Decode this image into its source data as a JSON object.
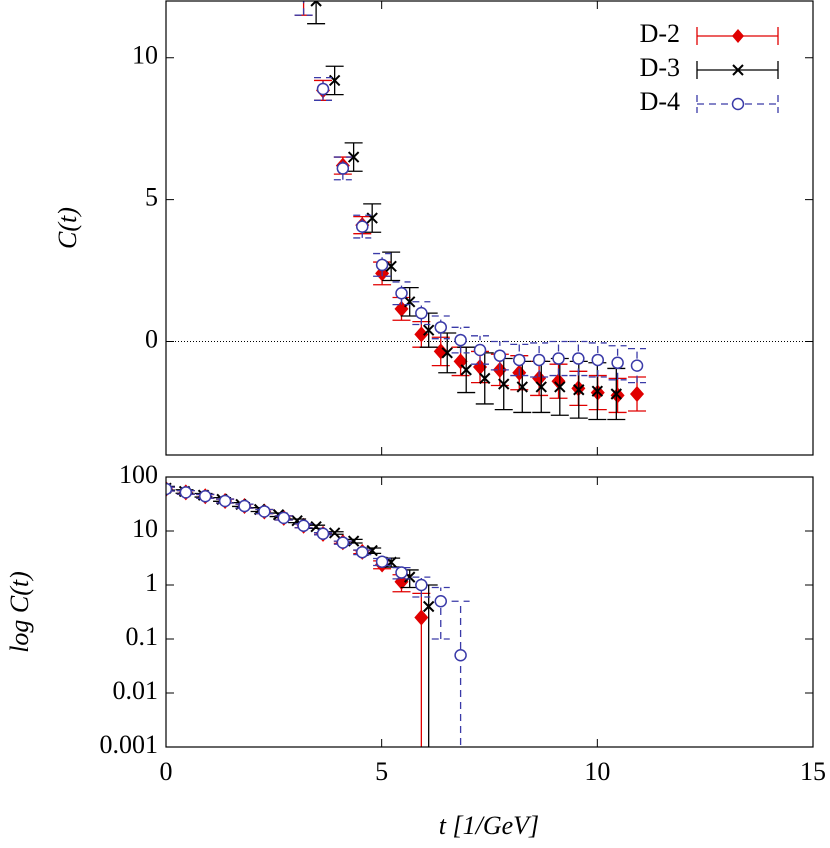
{
  "chart_data": {
    "type": "errorbar",
    "xlabel": "t [1/GeV]",
    "xlim": [
      0,
      15
    ],
    "xticks": [
      0,
      5,
      10,
      15
    ],
    "legend": "upper right",
    "panels": [
      {
        "ylabel": "C(t)",
        "log": false,
        "ylim": [
          -4,
          12
        ],
        "yticks": [
          0,
          5,
          10
        ],
        "zero_line": true
      },
      {
        "ylabel": "log C(t)",
        "log": true,
        "ylim": [
          0.001,
          100
        ],
        "yticks": [
          0.001,
          0.01,
          0.1,
          1,
          10,
          100
        ]
      }
    ],
    "series": [
      {
        "name": "D-2",
        "color": "#e00000",
        "marker": "diamond",
        "line": "solid",
        "x": [
          0,
          0.46,
          0.91,
          1.37,
          1.82,
          2.28,
          2.73,
          3.19,
          3.64,
          4.1,
          4.55,
          5.01,
          5.46,
          5.92,
          6.37,
          6.83,
          7.28,
          7.74,
          8.19,
          8.65,
          9.1,
          9.56,
          10.01,
          10.47,
          10.92
        ],
        "values": [
          60,
          52,
          44,
          36,
          29,
          23,
          17.5,
          12.5,
          8.85,
          6.2,
          4.1,
          2.4,
          1.15,
          0.25,
          -0.35,
          -0.7,
          -0.9,
          -1.0,
          -1.1,
          -1.3,
          -1.4,
          -1.65,
          -1.8,
          -1.9,
          -1.85
        ],
        "errors": [
          5,
          4,
          3.5,
          3,
          2.5,
          2,
          1.5,
          1,
          0.35,
          0.3,
          0.3,
          0.4,
          0.4,
          0.45,
          0.5,
          0.5,
          0.55,
          0.55,
          0.6,
          0.6,
          0.6,
          0.6,
          0.6,
          0.6,
          0.6
        ]
      },
      {
        "name": "D-3",
        "color": "#000000",
        "marker": "cross",
        "line": "solid",
        "x": [
          0,
          0.43,
          0.87,
          1.3,
          1.74,
          2.17,
          2.61,
          3.04,
          3.48,
          3.91,
          4.35,
          4.78,
          5.22,
          5.65,
          6.09,
          6.52,
          6.96,
          7.39,
          7.83,
          8.26,
          8.7,
          9.13,
          9.57,
          10.0,
          10.44
        ],
        "values": [
          62,
          54,
          46,
          38.5,
          31,
          25,
          20,
          15.5,
          12,
          9.2,
          6.5,
          4.35,
          2.65,
          1.4,
          0.4,
          -0.4,
          -1.0,
          -1.3,
          -1.5,
          -1.6,
          -1.6,
          -1.6,
          -1.7,
          -1.75,
          -1.85
        ],
        "errors": [
          5,
          4,
          3.5,
          3,
          2.5,
          2,
          1.5,
          1.2,
          0.8,
          0.5,
          0.5,
          0.5,
          0.5,
          0.5,
          0.6,
          0.7,
          0.8,
          0.9,
          0.9,
          0.9,
          0.9,
          1.0,
          1.0,
          1.0,
          0.9
        ]
      },
      {
        "name": "D-4",
        "color": "#3a3aa8",
        "marker": "circle",
        "line": "dashed",
        "x": [
          0,
          0.46,
          0.91,
          1.37,
          1.82,
          2.28,
          2.73,
          3.19,
          3.64,
          4.1,
          4.55,
          5.01,
          5.46,
          5.92,
          6.37,
          6.83,
          7.28,
          7.74,
          8.19,
          8.65,
          9.1,
          9.56,
          10.01,
          10.47,
          10.92
        ],
        "values": [
          60,
          52,
          44,
          36,
          29,
          23,
          17.5,
          12.5,
          8.9,
          6.1,
          4.05,
          2.7,
          1.7,
          1.0,
          0.5,
          0.05,
          -0.3,
          -0.5,
          -0.65,
          -0.65,
          -0.6,
          -0.6,
          -0.65,
          -0.75,
          -0.85
        ],
        "errors": [
          5,
          4,
          3.5,
          3,
          2.5,
          2,
          1.5,
          1,
          0.4,
          0.4,
          0.4,
          0.4,
          0.4,
          0.4,
          0.4,
          0.45,
          0.5,
          0.5,
          0.55,
          0.6,
          0.6,
          0.6,
          0.6,
          0.6,
          0.6
        ]
      }
    ]
  }
}
